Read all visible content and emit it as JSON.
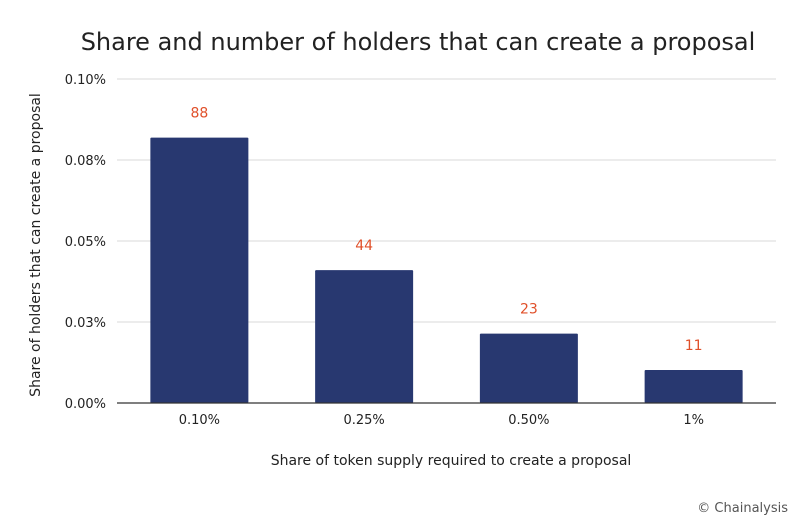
{
  "chart_data": {
    "type": "bar",
    "title": "Share and number of holders that can create a proposal",
    "xlabel": "Share of token supply required to create a proposal",
    "ylabel": "Share of holders that can create a proposal",
    "categories": [
      "0.10%",
      "0.25%",
      "0.50%",
      "1%"
    ],
    "values": [
      0.0819,
      0.041,
      0.0214,
      0.0102
    ],
    "data_labels": [
      "88",
      "44",
      "23",
      "11"
    ],
    "y_ticks": [
      0,
      0.025,
      0.05,
      0.075,
      0.1
    ],
    "y_tick_labels": [
      "0.00%",
      "0.03%",
      "0.05%",
      "0.08%",
      "0.10%"
    ],
    "ylim": [
      0,
      0.1
    ],
    "grid": true,
    "legend": "none",
    "colors": {
      "bar": "#283870",
      "data_label": "#e0502a",
      "grid": "#d9d9d9",
      "axis": "#333333"
    }
  },
  "footer": {
    "credit": "© Chainalysis"
  }
}
